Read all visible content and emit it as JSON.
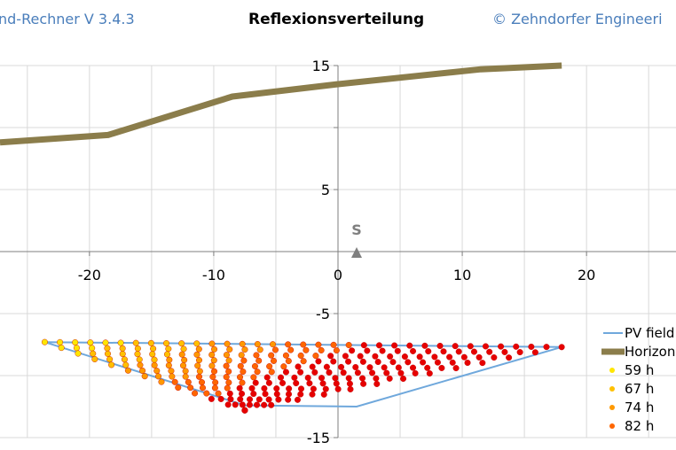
{
  "header": {
    "left_text": "nd-Rechner  V 3.4.3",
    "title": "Reflexionsverteilung",
    "right_text": "© Zehndorfer Engineeri"
  },
  "chart_data": {
    "type": "scatter",
    "title": "Reflexionsverteilung",
    "xlabel": "",
    "ylabel": "",
    "xlim": [
      -27.2,
      27.2
    ],
    "ylim": [
      -15,
      15
    ],
    "x_ticks": [
      -20,
      -10,
      0,
      10,
      20
    ],
    "y_ticks": [
      15,
      5,
      -5,
      -15
    ],
    "grid": true,
    "legend_position": "right",
    "colors": {
      "pv_field": "#6fa8dc",
      "horizon": "#8b7d4b",
      "59 h": "#ffe600",
      "67 h": "#ffc000",
      "74 h": "#ff9900",
      "82 h": "#ff6600",
      "dense": "#e60000",
      "point_border": "#c00000"
    },
    "south_marker": {
      "label": "S",
      "x": 1.5,
      "y": 0.0
    },
    "series": [
      {
        "name": "PV field",
        "kind": "line",
        "x": [
          -23.6,
          18.0,
          1.5,
          -7.5,
          -23.6
        ],
        "y": [
          -7.3,
          -7.7,
          -12.5,
          -12.4,
          -7.3
        ]
      },
      {
        "name": "Horizon",
        "kind": "line",
        "x": [
          -27.2,
          -18.5,
          -8.5,
          0,
          11.5,
          18.0
        ],
        "y": [
          8.8,
          9.4,
          12.5,
          13.5,
          14.7,
          15.0
        ]
      },
      {
        "name": "59 h",
        "kind": "scatter",
        "band": [
          0.0,
          0.15
        ]
      },
      {
        "name": "67 h",
        "kind": "scatter",
        "band": [
          0.15,
          0.3
        ]
      },
      {
        "name": "74 h",
        "kind": "scatter",
        "band": [
          0.3,
          0.45
        ]
      },
      {
        "name": "82 h",
        "kind": "scatter",
        "band": [
          0.45,
          0.6
        ]
      }
    ],
    "point_grid": {
      "apex_left": [
        -23.6,
        -7.3
      ],
      "apex_right": [
        18.0,
        -7.7
      ],
      "apex_bottom": [
        -7.5,
        -12.8
      ],
      "rows": 12,
      "cols": 34
    },
    "legend": [
      "PV field",
      "Horizon",
      "59 h",
      "67 h",
      "74 h",
      "82 h"
    ]
  }
}
